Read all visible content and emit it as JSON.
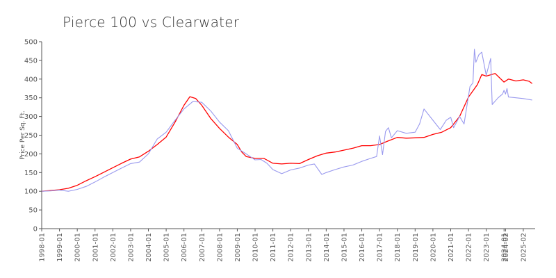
{
  "chart_data": {
    "type": "line",
    "title": "Pierce 100 vs Clearwater",
    "xlabel": "",
    "ylabel": "Price Per Sq. Ft.",
    "ylim": [
      0,
      500
    ],
    "yticks": [
      0,
      50,
      100,
      150,
      200,
      250,
      300,
      350,
      400,
      450,
      500
    ],
    "xticks": [
      "1998-01",
      "1999-01",
      "2000-01",
      "2001-01",
      "2002-01",
      "2003-01",
      "2004-01",
      "2005-01",
      "2006-01",
      "2007-01",
      "2008-01",
      "2009-01",
      "2010-01",
      "2011-01",
      "2012-01",
      "2013-01",
      "2014-01",
      "2015-01",
      "2016-01",
      "2017-01",
      "2018-01",
      "2019-01",
      "2020-01",
      "2021-01",
      "2022-01",
      "2023-01",
      "2024-01",
      "2024-02",
      "2025-02"
    ],
    "grid": false,
    "legend": "none",
    "series": [
      {
        "color": "#ff0000",
        "points": [
          [
            "1998-01",
            100
          ],
          [
            "1999-01",
            104
          ],
          [
            "1999-07",
            108
          ],
          [
            "2000-01",
            116
          ],
          [
            "2000-07",
            128
          ],
          [
            "2001-01",
            139
          ],
          [
            "2001-07",
            151
          ],
          [
            "2002-01",
            163
          ],
          [
            "2002-07",
            175
          ],
          [
            "2003-01",
            186
          ],
          [
            "2003-07",
            192
          ],
          [
            "2004-01",
            207
          ],
          [
            "2004-07",
            225
          ],
          [
            "2005-01",
            245
          ],
          [
            "2005-07",
            285
          ],
          [
            "2006-01",
            330
          ],
          [
            "2006-05",
            353
          ],
          [
            "2006-09",
            348
          ],
          [
            "2007-01",
            330
          ],
          [
            "2007-07",
            295
          ],
          [
            "2008-01",
            268
          ],
          [
            "2008-07",
            245
          ],
          [
            "2009-01",
            225
          ],
          [
            "2009-04",
            205
          ],
          [
            "2009-07",
            193
          ],
          [
            "2010-01",
            188
          ],
          [
            "2010-07",
            188
          ],
          [
            "2011-01",
            175
          ],
          [
            "2011-07",
            173
          ],
          [
            "2012-01",
            175
          ],
          [
            "2012-07",
            174
          ],
          [
            "2013-01",
            185
          ],
          [
            "2013-07",
            195
          ],
          [
            "2014-01",
            202
          ],
          [
            "2014-07",
            205
          ],
          [
            "2015-01",
            210
          ],
          [
            "2015-07",
            215
          ],
          [
            "2016-01",
            222
          ],
          [
            "2016-07",
            222
          ],
          [
            "2017-01",
            225
          ],
          [
            "2017-07",
            235
          ],
          [
            "2018-01",
            244
          ],
          [
            "2018-07",
            242
          ],
          [
            "2019-01",
            243
          ],
          [
            "2019-07",
            244
          ],
          [
            "2020-01",
            252
          ],
          [
            "2020-07",
            258
          ],
          [
            "2021-01",
            270
          ],
          [
            "2021-07",
            300
          ],
          [
            "2022-01",
            352
          ],
          [
            "2022-07",
            385
          ],
          [
            "2022-10",
            412
          ],
          [
            "2023-01",
            408
          ],
          [
            "2023-07",
            415
          ],
          [
            "2024-01",
            392
          ],
          [
            "2024-04",
            400
          ],
          [
            "2024-09",
            395
          ],
          [
            "2025-02",
            398
          ],
          [
            "2025-06",
            394
          ],
          [
            "2025-08",
            388
          ]
        ]
      },
      {
        "color": "#9999ee",
        "points": [
          [
            "1998-01",
            100
          ],
          [
            "1998-07",
            101
          ],
          [
            "1999-01",
            103
          ],
          [
            "1999-07",
            100
          ],
          [
            "2000-01",
            105
          ],
          [
            "2000-07",
            113
          ],
          [
            "2001-01",
            125
          ],
          [
            "2001-07",
            138
          ],
          [
            "2002-01",
            150
          ],
          [
            "2002-07",
            162
          ],
          [
            "2003-01",
            174
          ],
          [
            "2003-07",
            178
          ],
          [
            "2004-01",
            200
          ],
          [
            "2004-07",
            240
          ],
          [
            "2005-01",
            258
          ],
          [
            "2005-07",
            290
          ],
          [
            "2006-01",
            320
          ],
          [
            "2006-07",
            340
          ],
          [
            "2007-01",
            338
          ],
          [
            "2007-07",
            315
          ],
          [
            "2008-01",
            285
          ],
          [
            "2008-07",
            262
          ],
          [
            "2009-01",
            215
          ],
          [
            "2009-07",
            200
          ],
          [
            "2010-01",
            184
          ],
          [
            "2010-05",
            185
          ],
          [
            "2010-09",
            175
          ],
          [
            "2011-01",
            158
          ],
          [
            "2011-07",
            147
          ],
          [
            "2012-01",
            157
          ],
          [
            "2012-07",
            162
          ],
          [
            "2013-01",
            170
          ],
          [
            "2013-05",
            173
          ],
          [
            "2013-10",
            145
          ],
          [
            "2014-01",
            150
          ],
          [
            "2014-07",
            158
          ],
          [
            "2015-01",
            165
          ],
          [
            "2015-07",
            170
          ],
          [
            "2016-01",
            180
          ],
          [
            "2016-07",
            188
          ],
          [
            "2016-11",
            193
          ],
          [
            "2017-01",
            248
          ],
          [
            "2017-03",
            198
          ],
          [
            "2017-05",
            260
          ],
          [
            "2017-07",
            270
          ],
          [
            "2017-09",
            243
          ],
          [
            "2018-01",
            262
          ],
          [
            "2018-07",
            255
          ],
          [
            "2019-01",
            258
          ],
          [
            "2019-04",
            280
          ],
          [
            "2019-07",
            320
          ],
          [
            "2020-01",
            290
          ],
          [
            "2020-06",
            265
          ],
          [
            "2020-10",
            290
          ],
          [
            "2021-01",
            298
          ],
          [
            "2021-03",
            270
          ],
          [
            "2021-07",
            300
          ],
          [
            "2021-10",
            280
          ],
          [
            "2022-01",
            355
          ],
          [
            "2022-02",
            380
          ],
          [
            "2022-04",
            390
          ],
          [
            "2022-05",
            480
          ],
          [
            "2022-06",
            445
          ],
          [
            "2022-08",
            465
          ],
          [
            "2022-10",
            472
          ],
          [
            "2023-01",
            410
          ],
          [
            "2023-04",
            455
          ],
          [
            "2023-05",
            332
          ],
          [
            "2023-09",
            350
          ],
          [
            "2023-12",
            360
          ],
          [
            "2024-01",
            370
          ],
          [
            "2024-02",
            360
          ],
          [
            "2024-03",
            375
          ],
          [
            "2024-04",
            352
          ],
          [
            "2024-09",
            350
          ],
          [
            "2025-02",
            348
          ],
          [
            "2025-08",
            344
          ]
        ]
      }
    ]
  }
}
